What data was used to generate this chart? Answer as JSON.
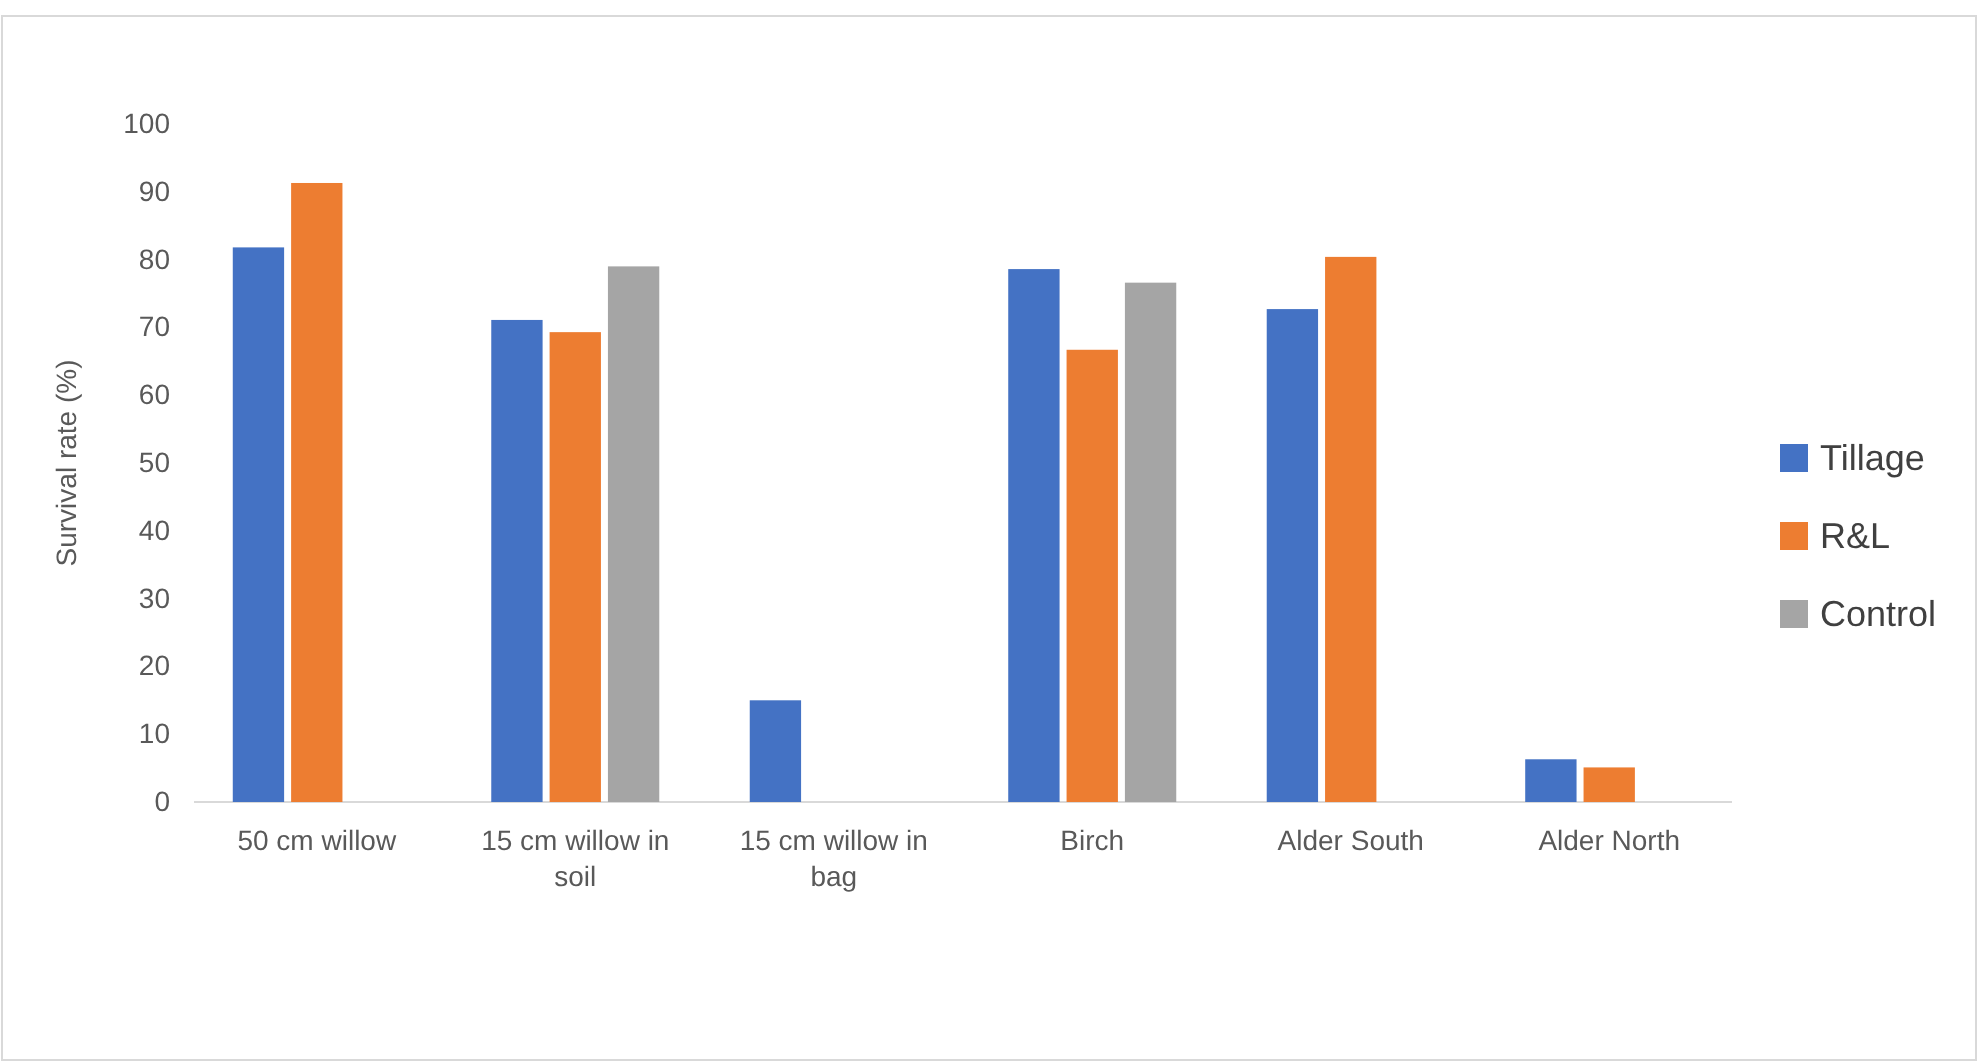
{
  "chart_data": {
    "type": "bar",
    "ylabel": "Survival rate (%)",
    "categories": [
      "50 cm willow",
      "15 cm willow in soil",
      "15 cm willow in bag",
      "Birch",
      "Alder South",
      "Alder North"
    ],
    "series": [
      {
        "name": "Tillage",
        "color": "#4472c4",
        "values": [
          81.8,
          71.1,
          15,
          78.6,
          72.7,
          6.3
        ]
      },
      {
        "name": "R&L",
        "color": "#ed7d31",
        "values": [
          91.3,
          69.3,
          null,
          66.7,
          80.4,
          5.1
        ]
      },
      {
        "name": "Control",
        "color": "#a5a5a5",
        "values": [
          null,
          79,
          null,
          76.6,
          null,
          null
        ]
      }
    ],
    "ylim": [
      0,
      100
    ],
    "yticks": [
      0,
      10,
      20,
      30,
      40,
      50,
      60,
      70,
      80,
      90,
      100
    ],
    "grid": false,
    "legend": "right"
  }
}
